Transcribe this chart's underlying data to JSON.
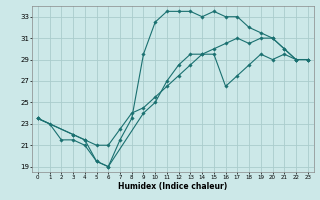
{
  "xlabel": "Humidex (Indice chaleur)",
  "background_color": "#cce8e8",
  "grid_color": "#aacccc",
  "line_color": "#1a7070",
  "xlim": [
    -0.5,
    23.5
  ],
  "ylim": [
    18.5,
    34.0
  ],
  "xticks": [
    0,
    1,
    2,
    3,
    4,
    5,
    6,
    7,
    8,
    9,
    10,
    11,
    12,
    13,
    14,
    15,
    16,
    17,
    18,
    19,
    20,
    21,
    22,
    23
  ],
  "yticks": [
    19,
    21,
    23,
    25,
    27,
    29,
    31,
    33
  ],
  "curve1_x": [
    0,
    1,
    2,
    3,
    4,
    5,
    6,
    7,
    8,
    9,
    10,
    11,
    12,
    13,
    14,
    15,
    16,
    17,
    18,
    19,
    20,
    21,
    22,
    23
  ],
  "curve1_y": [
    23.5,
    23.0,
    21.5,
    21.5,
    21.0,
    19.5,
    19.0,
    21.5,
    23.5,
    29.5,
    32.5,
    33.5,
    33.5,
    33.5,
    33.0,
    33.5,
    33.0,
    33.0,
    32.0,
    31.5,
    31.0,
    30.0,
    29.0,
    29.0
  ],
  "curve2_x": [
    0,
    3,
    4,
    5,
    6,
    7,
    8,
    9,
    10,
    11,
    12,
    13,
    14,
    15,
    16,
    17,
    18,
    19,
    20,
    21,
    22,
    23
  ],
  "curve2_y": [
    23.5,
    22.0,
    21.5,
    21.0,
    21.0,
    22.5,
    24.0,
    24.5,
    25.5,
    26.5,
    27.5,
    28.5,
    29.5,
    29.5,
    26.5,
    27.5,
    28.5,
    29.5,
    29.0,
    29.5,
    29.0,
    29.0
  ],
  "curve3_x": [
    0,
    3,
    4,
    5,
    6,
    9,
    10,
    11,
    12,
    13,
    14,
    15,
    16,
    17,
    18,
    19,
    20,
    21,
    22,
    23
  ],
  "curve3_y": [
    23.5,
    22.0,
    21.5,
    19.5,
    19.0,
    24.0,
    25.0,
    27.0,
    28.5,
    29.5,
    29.5,
    30.0,
    30.5,
    31.0,
    30.5,
    31.0,
    31.0,
    30.0,
    29.0,
    29.0
  ]
}
